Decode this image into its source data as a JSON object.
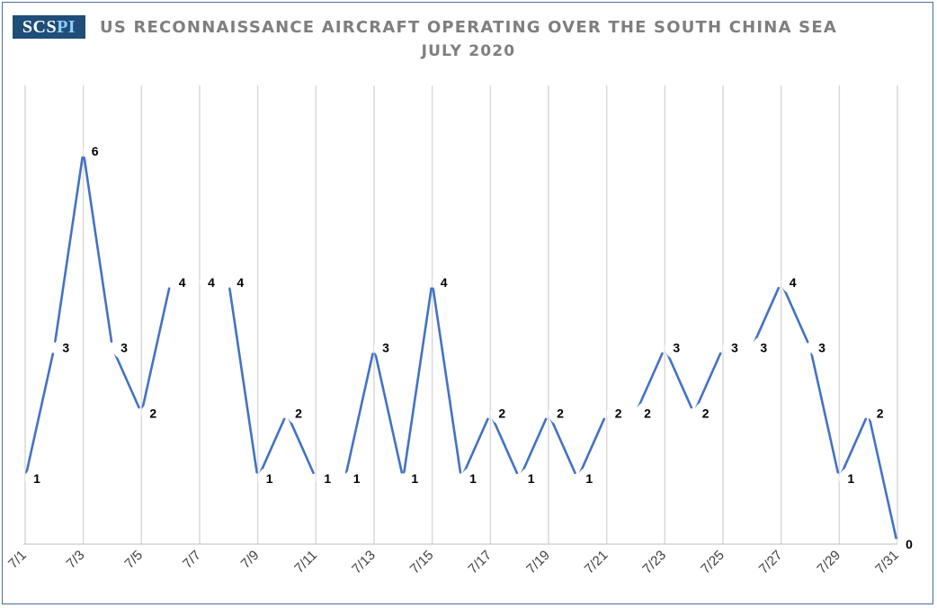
{
  "logo": {
    "main": "SCS",
    "accent": "PI"
  },
  "chart_data": {
    "type": "line",
    "title": "US RECONNAISSANCE AIRCRAFT OPERATING OVER THE SOUTH CHINA SEA",
    "subtitle": "JULY 2020",
    "xlabel": "",
    "ylabel": "",
    "x": [
      "7/1",
      "7/2",
      "7/3",
      "7/4",
      "7/5",
      "7/6",
      "7/7",
      "7/8",
      "7/9",
      "7/10",
      "7/11",
      "7/12",
      "7/13",
      "7/14",
      "7/15",
      "7/16",
      "7/17",
      "7/18",
      "7/19",
      "7/20",
      "7/21",
      "7/22",
      "7/23",
      "7/24",
      "7/25",
      "7/26",
      "7/27",
      "7/28",
      "7/29",
      "7/30",
      "7/31"
    ],
    "tick_labels": [
      "7/1",
      "7/3",
      "7/5",
      "7/7",
      "7/9",
      "7/11",
      "7/13",
      "7/15",
      "7/17",
      "7/19",
      "7/21",
      "7/23",
      "7/25",
      "7/27",
      "7/29",
      "7/31"
    ],
    "values": [
      1,
      3,
      6,
      3,
      2,
      4,
      4,
      4,
      1,
      2,
      1,
      1,
      3,
      1,
      4,
      1,
      2,
      1,
      2,
      1,
      2,
      2,
      3,
      2,
      3,
      3,
      4,
      3,
      1,
      2,
      0
    ],
    "segment_breaks_after": [
      "7/6",
      "7/7",
      "7/11",
      "7/21",
      "7/25"
    ],
    "ylim": [
      0,
      7
    ],
    "grid": "vertical",
    "legend": "none",
    "colors": {
      "line": "#4472c4",
      "grid": "#d9d9d9",
      "axis": "#bfbfbf",
      "label": "#000000"
    }
  }
}
